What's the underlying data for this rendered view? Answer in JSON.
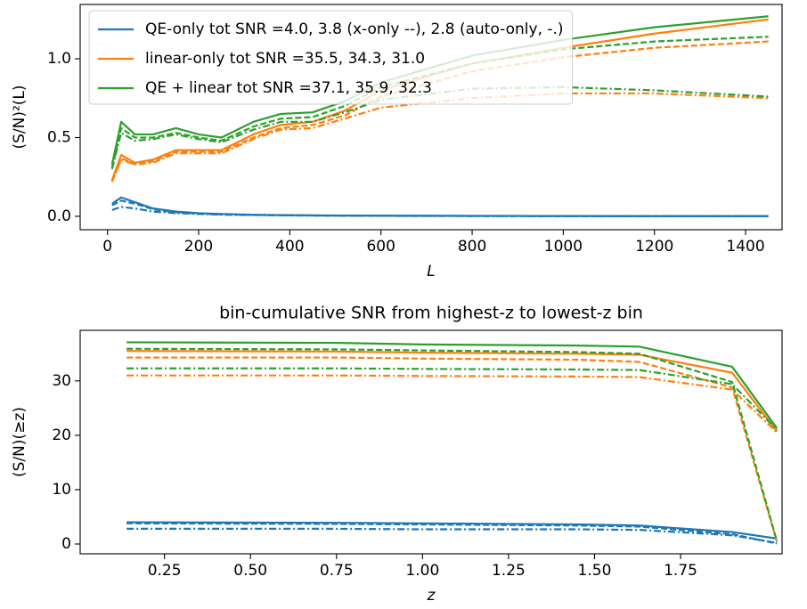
{
  "chart_data": [
    {
      "type": "line",
      "x": [
        10,
        30,
        60,
        100,
        150,
        200,
        250,
        320,
        380,
        450,
        520,
        600,
        800,
        1000,
        1200,
        1450
      ],
      "xlabel": "L",
      "ylabel": "(S/N)²(L)",
      "xlim": [
        -60,
        1480
      ],
      "ylim": [
        -0.085,
        1.345
      ],
      "xticks": [
        0,
        200,
        400,
        600,
        800,
        1000,
        1200,
        1400
      ],
      "yticks": [
        {
          "value": 0,
          "label": "0.0"
        },
        0.5,
        {
          "value": 1,
          "label": "1.0"
        }
      ],
      "legend": "upper left",
      "series": [
        {
          "name": "QE-only tot SNR =4.0, 3.8 (x-only --), 2.8 (auto-only, -.)",
          "color": "#1f77b4",
          "linestyle": "-",
          "values": [
            0.08,
            0.12,
            0.09,
            0.05,
            0.03,
            0.02,
            0.015,
            0.01,
            0.008,
            0.006,
            0.005,
            0.004,
            0.003,
            0.002,
            0.001,
            0.001
          ]
        },
        {
          "color": "#1f77b4",
          "linestyle": "--",
          "values": [
            0.07,
            0.1,
            0.08,
            0.045,
            0.025,
            0.018,
            0.012,
            0.009,
            0.007,
            0.005,
            0.004,
            0.003,
            0.002,
            0.001,
            0.001,
            0.001
          ]
        },
        {
          "color": "#1f77b4",
          "linestyle": "-.",
          "values": [
            0.04,
            0.06,
            0.05,
            0.03,
            0.02,
            0.015,
            0.01,
            0.008,
            0.006,
            0.005,
            0.004,
            0.003,
            0.002,
            0.001,
            0.001,
            0.001
          ]
        },
        {
          "name": "linear-only tot SNR =35.5, 34.3, 31.0",
          "color": "#ff7f0e",
          "linestyle": "-",
          "values": [
            0.23,
            0.39,
            0.34,
            0.36,
            0.42,
            0.42,
            0.42,
            0.52,
            0.58,
            0.6,
            0.67,
            0.8,
            0.97,
            1.07,
            1.16,
            1.25
          ]
        },
        {
          "color": "#ff7f0e",
          "linestyle": "--",
          "values": [
            0.22,
            0.37,
            0.33,
            0.35,
            0.41,
            0.41,
            0.41,
            0.5,
            0.56,
            0.58,
            0.64,
            0.76,
            0.92,
            1.01,
            1.07,
            1.11
          ]
        },
        {
          "color": "#ff7f0e",
          "linestyle": "-.",
          "values": [
            0.22,
            0.36,
            0.33,
            0.34,
            0.4,
            0.4,
            0.4,
            0.49,
            0.55,
            0.56,
            0.62,
            0.69,
            0.75,
            0.78,
            0.78,
            0.75
          ]
        },
        {
          "name": "QE + linear tot SNR =37.1, 35.9, 32.3",
          "color": "#2ca02c",
          "linestyle": "-",
          "values": [
            0.33,
            0.6,
            0.52,
            0.52,
            0.56,
            0.52,
            0.5,
            0.6,
            0.65,
            0.66,
            0.73,
            0.85,
            1.02,
            1.12,
            1.2,
            1.27
          ]
        },
        {
          "color": "#2ca02c",
          "linestyle": "--",
          "values": [
            0.31,
            0.56,
            0.5,
            0.5,
            0.53,
            0.5,
            0.48,
            0.57,
            0.62,
            0.63,
            0.7,
            0.82,
            0.97,
            1.06,
            1.11,
            1.14
          ]
        },
        {
          "color": "#2ca02c",
          "linestyle": "-.",
          "values": [
            0.3,
            0.53,
            0.48,
            0.49,
            0.52,
            0.49,
            0.47,
            0.55,
            0.6,
            0.6,
            0.66,
            0.74,
            0.81,
            0.82,
            0.8,
            0.76
          ]
        }
      ]
    },
    {
      "type": "line",
      "title": "bin-cumulative SNR from highest-z to lowest-z bin",
      "x": [
        0.14,
        0.75,
        1.0,
        1.45,
        1.63,
        1.9,
        2.03
      ],
      "xlabel": "z",
      "ylabel": "(S/N)(≥z)",
      "xlim": [
        0.005,
        2.045
      ],
      "ylim": [
        -1.8,
        39.3
      ],
      "xticks": [
        0.25,
        {
          "value": 0.5,
          "label": "0.50"
        },
        0.75,
        {
          "value": 1,
          "label": "1.00"
        },
        1.25,
        {
          "value": 1.5,
          "label": "1.50"
        },
        1.75
      ],
      "yticks": [
        0,
        10,
        20,
        30
      ],
      "series": [
        {
          "color": "#1f77b4",
          "linestyle": "-",
          "values": [
            4.0,
            3.9,
            3.8,
            3.6,
            3.4,
            2.2,
            1.0
          ]
        },
        {
          "color": "#1f77b4",
          "linestyle": "--",
          "values": [
            3.8,
            3.7,
            3.6,
            3.4,
            3.2,
            1.8,
            0.1
          ]
        },
        {
          "color": "#1f77b4",
          "linestyle": "-.",
          "values": [
            2.8,
            2.8,
            2.7,
            2.7,
            2.6,
            1.6,
            0.2
          ]
        },
        {
          "color": "#ff7f0e",
          "linestyle": "-",
          "values": [
            35.5,
            35.4,
            35.2,
            35.0,
            34.8,
            31.5,
            20.7
          ]
        },
        {
          "color": "#ff7f0e",
          "linestyle": "--",
          "values": [
            34.3,
            34.3,
            34.1,
            33.9,
            33.5,
            28.8,
            0.4
          ]
        },
        {
          "color": "#ff7f0e",
          "linestyle": "-.",
          "values": [
            31.0,
            31.0,
            30.9,
            30.8,
            30.7,
            28.4,
            20.5
          ]
        },
        {
          "color": "#2ca02c",
          "linestyle": "-",
          "values": [
            37.1,
            37.0,
            36.7,
            36.5,
            36.3,
            32.6,
            21.3
          ]
        },
        {
          "color": "#2ca02c",
          "linestyle": "--",
          "values": [
            35.9,
            35.8,
            35.6,
            35.3,
            35.0,
            29.8,
            0.5
          ]
        },
        {
          "color": "#2ca02c",
          "linestyle": "-.",
          "values": [
            32.3,
            32.3,
            32.2,
            32.1,
            32.0,
            29.4,
            21.0
          ]
        }
      ]
    }
  ]
}
